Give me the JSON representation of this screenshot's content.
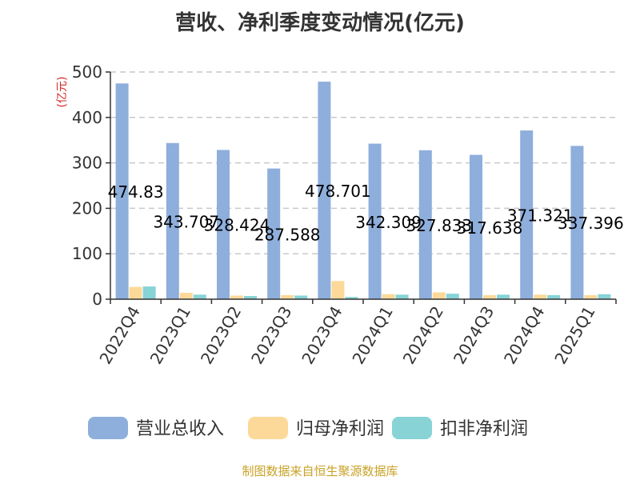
{
  "chart_data": {
    "type": "bar",
    "title": "营收、净利季度变动情况(亿元)",
    "ylabel": "(亿元)",
    "xlabel": "",
    "categories": [
      "2022Q4",
      "2023Q1",
      "2023Q2",
      "2023Q3",
      "2023Q4",
      "2024Q1",
      "2024Q2",
      "2024Q3",
      "2024Q4",
      "2025Q1"
    ],
    "ylim": [
      0,
      500
    ],
    "yticks": [
      0,
      100,
      200,
      300,
      400,
      500
    ],
    "grid": true,
    "legend_position": "bottom",
    "series": [
      {
        "name": "营业总收入",
        "color": "#8eaedc",
        "values": [
          474.83,
          343.707,
          328.424,
          287.588,
          478.701,
          342.309,
          327.833,
          317.638,
          371.321,
          337.396
        ],
        "data_labels": [
          "474.83",
          "343.707",
          "328.424",
          "287.588",
          "478.701",
          "342.309",
          "327.833",
          "317.638",
          "371.321",
          "337.396"
        ]
      },
      {
        "name": "归母净利润",
        "color": "#fcd999",
        "values": [
          27,
          14,
          8,
          9,
          40,
          11,
          15,
          9,
          10,
          9
        ]
      },
      {
        "name": "扣非净利润",
        "color": "#87d3d6",
        "values": [
          28,
          10,
          7,
          8,
          5,
          10,
          12,
          10,
          9,
          11
        ]
      }
    ]
  },
  "footer": {
    "source": "制图数据来自恒生聚源数据库"
  }
}
